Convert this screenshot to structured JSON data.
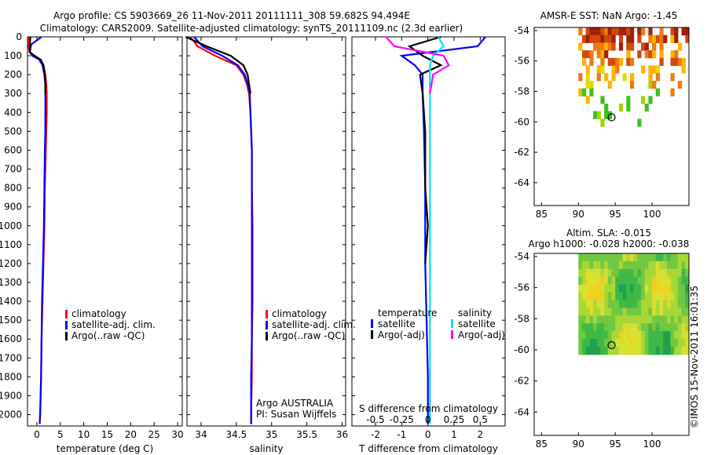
{
  "header": {
    "title_line1": "Argo profile: CS 5903669_26 11-Nov-2011 20111111_308 59.682S 94.494E",
    "title_line2": "Climatology: CARS2009. Satellite-adjusted climatology: synTS_20111109.nc (2.3d earlier)"
  },
  "chart_data": [
    {
      "type": "line",
      "id": "temperature",
      "xlabel": "temperature (deg C)",
      "ylabel": "",
      "xlim": [
        -2,
        31
      ],
      "ylim": [
        2060,
        0
      ],
      "xticks": [
        "0",
        "5",
        "10",
        "15",
        "20",
        "25",
        "30"
      ],
      "yticks": [
        "0",
        "100",
        "200",
        "300",
        "400",
        "500",
        "600",
        "700",
        "800",
        "900",
        "1000",
        "1100",
        "1200",
        "1300",
        "1400",
        "1500",
        "1600",
        "1700",
        "1800",
        "1900",
        "2000"
      ],
      "legend": [
        "climatology",
        "satellite-adj. clim.",
        "Argo(..raw -QC)"
      ],
      "legend_placement": "lower-middle",
      "series": [
        {
          "name": "climatology",
          "color": "#ff0000",
          "depth": [
            0,
            40,
            80,
            100,
            120,
            150,
            200,
            250,
            300,
            400,
            500,
            600,
            800,
            1000,
            1200,
            1400,
            1600,
            1800,
            2000,
            2050
          ],
          "values": [
            -1.8,
            -1.8,
            -1.6,
            -0.8,
            0.6,
            1.4,
            1.8,
            2.0,
            2.1,
            2.1,
            2.0,
            1.9,
            1.7,
            1.6,
            1.4,
            1.2,
            1.0,
            0.9,
            0.7,
            0.6
          ]
        },
        {
          "name": "satellite-adj. clim.",
          "color": "#0000ff",
          "depth": [
            0,
            40,
            80,
            100,
            120,
            150,
            200,
            250,
            300,
            400,
            500,
            600,
            800,
            1000,
            1200,
            1400,
            1600,
            1800,
            2000,
            2050
          ],
          "values": [
            1.0,
            -1.2,
            -1.5,
            -1.0,
            0.5,
            1.2,
            1.6,
            1.8,
            1.8,
            1.8,
            1.8,
            1.7,
            1.6,
            1.5,
            1.3,
            1.1,
            1.0,
            0.9,
            0.7,
            0.6
          ]
        },
        {
          "name": "Argo(..raw -QC)",
          "color": "#000000",
          "depth": [
            0,
            40,
            80,
            100,
            120,
            150,
            200,
            250,
            300
          ],
          "values": [
            -1.4,
            -1.5,
            -1.5,
            -0.5,
            0.8,
            1.4,
            1.7,
            1.8,
            1.8
          ]
        }
      ]
    },
    {
      "type": "line",
      "id": "salinity",
      "xlabel": "salinity",
      "ylabel": "",
      "xlim": [
        33.8,
        36.05
      ],
      "ylim": [
        2060,
        0
      ],
      "xticks": [
        "34",
        "34.5",
        "35",
        "35.5",
        "36"
      ],
      "legend": [
        "climatology",
        "satellite-adj. clim.",
        "Argo(..raw -QC)"
      ],
      "legend_placement": "lower-right",
      "annotations": [
        "Argo AUSTRALIA",
        "PI: Susan Wijffels"
      ],
      "series": [
        {
          "name": "climatology",
          "color": "#ff0000",
          "depth": [
            0,
            50,
            100,
            150,
            200,
            250,
            300,
            400,
            500,
            600,
            800,
            1000,
            1200,
            1400,
            1600,
            1800,
            2000,
            2050
          ],
          "values": [
            33.85,
            33.95,
            34.2,
            34.5,
            34.6,
            34.65,
            34.68,
            34.7,
            34.71,
            34.72,
            34.72,
            34.73,
            34.73,
            34.73,
            34.72,
            34.72,
            34.71,
            34.71
          ]
        },
        {
          "name": "satellite-adj. clim.",
          "color": "#0000ff",
          "depth": [
            0,
            50,
            100,
            150,
            200,
            250,
            300,
            400,
            500,
            600,
            800,
            1000,
            1200,
            1400,
            1600,
            1800,
            2000,
            2050
          ],
          "values": [
            33.9,
            34.02,
            34.3,
            34.52,
            34.62,
            34.66,
            34.69,
            34.7,
            34.71,
            34.72,
            34.72,
            34.72,
            34.72,
            34.72,
            34.72,
            34.71,
            34.71,
            34.71
          ]
        },
        {
          "name": "Argo(..raw -QC)",
          "color": "#000000",
          "depth": [
            0,
            50,
            100,
            150,
            200,
            250,
            300
          ],
          "values": [
            33.78,
            34.08,
            34.42,
            34.6,
            34.66,
            34.68,
            34.7
          ]
        }
      ]
    },
    {
      "type": "line",
      "id": "differences",
      "xlabel": "T difference from climatology",
      "top_label": "S difference from climatology",
      "xlim": [
        -2.9,
        2.95
      ],
      "ylim": [
        2060,
        0
      ],
      "xticks": [
        "-2",
        "-1",
        "0",
        "1",
        "2"
      ],
      "top_ticks": [
        "-0.5",
        "-0.25",
        "0",
        "0.25",
        "0.5"
      ],
      "legend_groups": [
        {
          "title": "temperature",
          "items": [
            "satellite",
            "Argo(-adj)"
          ]
        },
        {
          "title": "salinity",
          "items": [
            "satellite",
            "Argo(-adj)"
          ]
        }
      ],
      "series": [
        {
          "name": "temperature satellite",
          "color": "#0000ff",
          "depth": [
            0,
            50,
            100,
            150,
            200,
            300,
            500,
            800,
            1000,
            1200,
            1500,
            1800,
            2000,
            2050
          ],
          "values": [
            2.2,
            1.9,
            -1.0,
            -0.5,
            -0.2,
            -0.2,
            -0.15,
            -0.1,
            -0.1,
            -0.1,
            -0.05,
            0,
            0,
            0
          ]
        },
        {
          "name": "temperature Argo(-adj)",
          "color": "#000000",
          "depth": [
            0,
            50,
            100,
            150,
            200,
            300,
            500,
            800,
            1000,
            1200
          ],
          "values": [
            0.5,
            -0.7,
            -0.2,
            0.5,
            -0.3,
            -0.2,
            -0.1,
            -0.1,
            0,
            -0.1
          ]
        },
        {
          "name": "salinity satellite",
          "color": "#00e5ee",
          "depth": [
            0,
            50,
            100,
            150,
            200,
            300,
            500,
            800,
            1000,
            1500,
            2000,
            2050
          ],
          "values": [
            0.1,
            0.15,
            0.05,
            0.02,
            0.02,
            0.02,
            0.02,
            0.02,
            0.02,
            0.02,
            0.02,
            0.02
          ]
        },
        {
          "name": "salinity Argo(-adj)",
          "color": "#ff00ff",
          "depth": [
            0,
            50,
            100,
            150,
            200,
            300
          ],
          "values": [
            -0.4,
            -0.32,
            0.15,
            0.2,
            0.05,
            0.02
          ]
        }
      ]
    },
    {
      "type": "heatmap",
      "id": "amsr-e-sst",
      "title": "AMSR-E SST: NaN Argo: -1.45",
      "xlim": [
        84,
        105
      ],
      "ylim": [
        -65.5,
        -53.8
      ],
      "xticks": [
        "85",
        "90",
        "95",
        "100"
      ],
      "yticks": [
        "-54",
        "-56",
        "-58",
        "-60",
        "-62",
        "-64"
      ],
      "marker": {
        "lon": 94.5,
        "lat": -59.7
      },
      "colors": [
        "#a0200a",
        "#d04a10",
        "#ee7a10",
        "#ffb400",
        "#e6d800",
        "#a8d000",
        "#40c020"
      ]
    },
    {
      "type": "heatmap",
      "id": "altimetry-sla",
      "title": "Altim. SLA: -0.015",
      "subtitle": "Argo h1000: -0.028 h2000: -0.038",
      "xlim": [
        84,
        105
      ],
      "ylim": [
        -65.5,
        -53.8
      ],
      "xticks": [
        "85",
        "90",
        "95",
        "100"
      ],
      "yticks": [
        "-54",
        "-56",
        "-58",
        "-60",
        "-62",
        "-64"
      ],
      "marker": {
        "lon": 94.5,
        "lat": -59.7
      },
      "colors": [
        "#20a050",
        "#40b848",
        "#70c840",
        "#a8d838",
        "#d8e030",
        "#f0d020"
      ]
    }
  ],
  "footer": {
    "watermark": "©IMOS 15-Nov-2011 16:01:35"
  }
}
